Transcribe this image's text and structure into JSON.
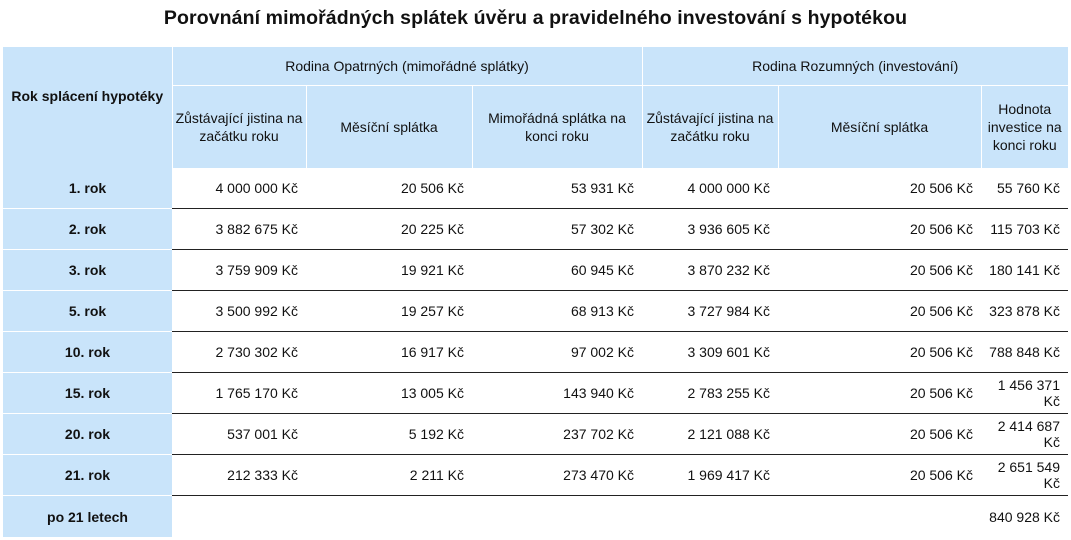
{
  "title": "Porovnání mimořádných splátek úvěru a pravidelného investování s hypotékou",
  "table": {
    "corner_label": "Rok splácení hypotéky",
    "group_opatrnych": "Rodina Opatrných (mimořádné splátky)",
    "group_rozumnych": "Rodina Rozumných (investování)",
    "columns": [
      "Zůstávající jistina na začátku roku",
      "Měsíční splátka",
      "Mimořádná splátka na konci roku",
      "Zůstávající jistina na začátku roku",
      "Měsíční splátka",
      "Hodnota investice na konci roku"
    ],
    "rows": [
      {
        "label": "1. rok",
        "cells": [
          "4 000 000 Kč",
          "20 506 Kč",
          "53 931 Kč",
          "4 000 000 Kč",
          "20 506 Kč",
          "55 760 Kč"
        ]
      },
      {
        "label": "2. rok",
        "cells": [
          "3 882 675 Kč",
          "20 225 Kč",
          "57 302 Kč",
          "3 936 605 Kč",
          "20 506 Kč",
          "115 703 Kč"
        ]
      },
      {
        "label": "3. rok",
        "cells": [
          "3 759 909 Kč",
          "19 921 Kč",
          "60 945 Kč",
          "3 870 232 Kč",
          "20 506 Kč",
          "180 141 Kč"
        ]
      },
      {
        "label": "5. rok",
        "cells": [
          "3 500 992 Kč",
          "19 257 Kč",
          "68 913 Kč",
          "3 727 984 Kč",
          "20 506 Kč",
          "323 878 Kč"
        ]
      },
      {
        "label": "10. rok",
        "cells": [
          "2 730 302 Kč",
          "16 917 Kč",
          "97 002 Kč",
          "3 309 601 Kč",
          "20 506 Kč",
          "788 848 Kč"
        ]
      },
      {
        "label": "15. rok",
        "cells": [
          "1 765 170 Kč",
          "13 005 Kč",
          "143 940 Kč",
          "2 783 255 Kč",
          "20 506 Kč",
          "1 456 371 Kč"
        ]
      },
      {
        "label": "20. rok",
        "cells": [
          "537 001 Kč",
          "5 192 Kč",
          "237 702 Kč",
          "2 121 088 Kč",
          "20 506 Kč",
          "2 414 687 Kč"
        ]
      },
      {
        "label": "21. rok",
        "cells": [
          "212 333 Kč",
          "2 211 Kč",
          "273 470 Kč",
          "1 969 417 Kč",
          "20 506 Kč",
          "2 651 549 Kč"
        ]
      },
      {
        "label": "po 21 letech",
        "cells": [
          "",
          "",
          "",
          "",
          "",
          "840 928 Kč"
        ]
      }
    ]
  }
}
